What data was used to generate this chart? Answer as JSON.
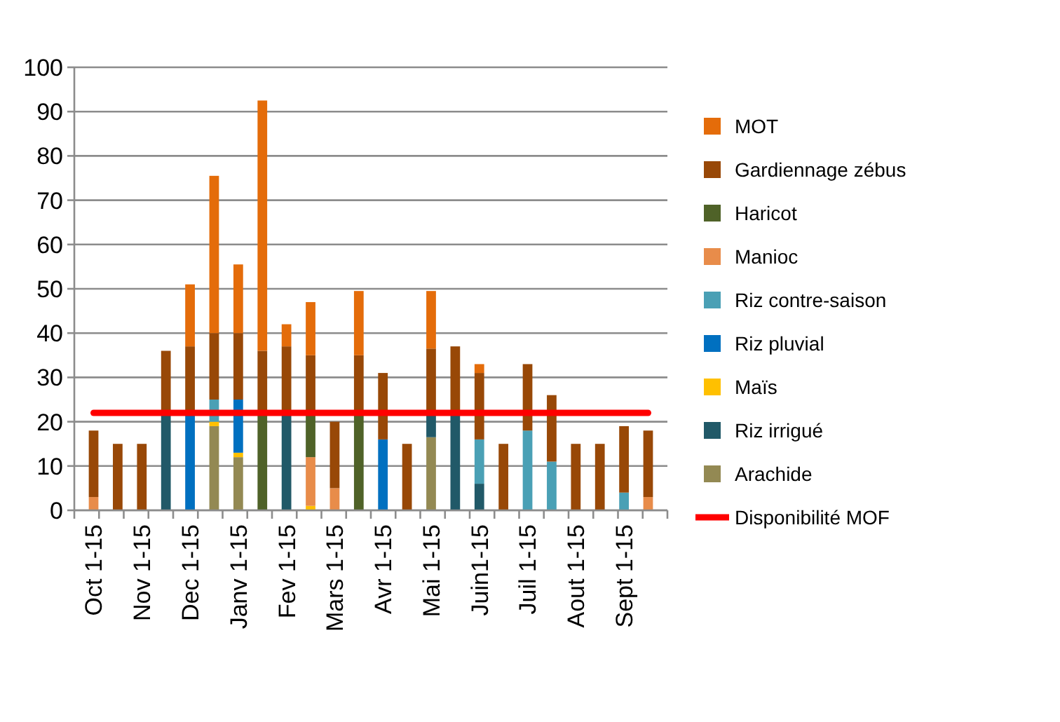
{
  "chart_data": {
    "type": "bar",
    "stacked": true,
    "categories": [
      "Oct 1-15",
      null,
      "Nov 1-15",
      null,
      "Dec 1-15",
      null,
      "Janv 1-15",
      null,
      "Fev 1-15",
      null,
      "Mars 1-15",
      null,
      "Avr 1-15",
      null,
      "Mai 1-15",
      null,
      "Juin1-15",
      null,
      "Juil 1-15",
      null,
      "Aout 1-15",
      null,
      "Sept 1-15",
      null
    ],
    "ylim": [
      0,
      100
    ],
    "yticks": [
      0,
      10,
      20,
      30,
      40,
      50,
      60,
      70,
      80,
      90,
      100
    ],
    "grid": "y",
    "legend": "right",
    "series": [
      {
        "name": "Arachide",
        "color": "#938953",
        "values": [
          null,
          null,
          null,
          null,
          null,
          19,
          12,
          null,
          null,
          null,
          null,
          null,
          null,
          null,
          16.5,
          null,
          null,
          null,
          null,
          null,
          null,
          null,
          null,
          null
        ]
      },
      {
        "name": "Riz irrigué",
        "color": "#215968",
        "values": [
          null,
          null,
          null,
          22,
          null,
          null,
          null,
          null,
          22,
          null,
          null,
          null,
          null,
          null,
          5.5,
          22,
          6,
          null,
          null,
          null,
          null,
          null,
          null,
          null
        ]
      },
      {
        "name": "Maïs",
        "color": "#ffc000",
        "values": [
          null,
          null,
          null,
          null,
          null,
          1,
          1,
          null,
          null,
          1,
          null,
          null,
          null,
          null,
          null,
          null,
          null,
          null,
          null,
          null,
          null,
          null,
          null,
          null
        ]
      },
      {
        "name": "Riz pluvial",
        "color": "#0070c0",
        "values": [
          null,
          null,
          null,
          null,
          22,
          null,
          12,
          null,
          null,
          null,
          null,
          null,
          16,
          null,
          null,
          null,
          null,
          null,
          null,
          null,
          null,
          null,
          null,
          null
        ]
      },
      {
        "name": "Riz contre-saison",
        "color": "#4aa0b5",
        "values": [
          null,
          null,
          null,
          null,
          null,
          5,
          null,
          null,
          null,
          null,
          null,
          null,
          null,
          null,
          null,
          null,
          10,
          null,
          18,
          11,
          null,
          null,
          4,
          null
        ]
      },
      {
        "name": "Manioc",
        "color": "#e88c4a",
        "values": [
          3,
          null,
          null,
          null,
          null,
          null,
          null,
          null,
          null,
          11,
          5,
          null,
          null,
          null,
          null,
          null,
          null,
          null,
          null,
          null,
          null,
          null,
          null,
          3
        ]
      },
      {
        "name": "Haricot",
        "color": "#4f6228",
        "values": [
          null,
          null,
          null,
          null,
          null,
          null,
          null,
          22,
          null,
          10,
          null,
          22,
          null,
          null,
          null,
          null,
          null,
          null,
          null,
          null,
          null,
          null,
          null,
          null
        ]
      },
      {
        "name": "Gardiennage zébus",
        "color": "#984807",
        "values": [
          15,
          15,
          15,
          14,
          15,
          15,
          15,
          14,
          15,
          13,
          15,
          13,
          15,
          15,
          14.5,
          15,
          15,
          15,
          15,
          15,
          15,
          15,
          15,
          15
        ]
      },
      {
        "name": "MOT",
        "color": "#e46c0a",
        "values": [
          null,
          null,
          null,
          null,
          14,
          35.5,
          15.5,
          56.5,
          5,
          12,
          null,
          14.5,
          null,
          null,
          13,
          null,
          2,
          null,
          null,
          null,
          null,
          null,
          null,
          null
        ]
      },
      {
        "name": "Disponibilité MOF",
        "type": "line",
        "color": "#ff0000",
        "values": [
          22,
          22,
          22,
          22,
          22,
          22,
          22,
          22,
          22,
          22,
          22,
          22,
          22,
          22,
          22,
          22,
          22,
          22,
          22,
          22,
          22,
          22,
          22,
          22
        ]
      }
    ]
  }
}
